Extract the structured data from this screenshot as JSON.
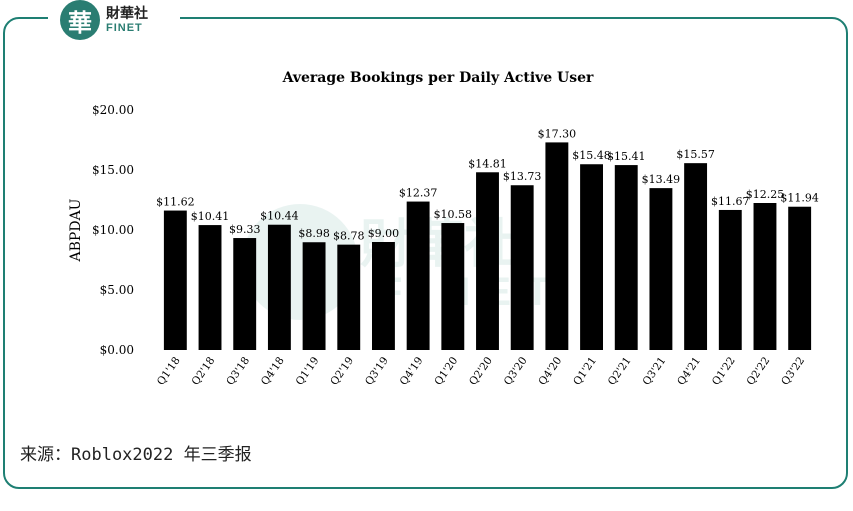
{
  "brand": {
    "badge_char": "華",
    "name_cn": "財華社",
    "name_en": "FINET"
  },
  "watermark": {
    "main": "財華社",
    "sub": "FINET"
  },
  "source_note": "来源：Roblox2022 年三季报",
  "colors": {
    "accent": "#1e7f73",
    "bar": "#000000"
  },
  "chart_data": {
    "type": "bar",
    "title": "Average Bookings per Daily Active User",
    "xlabel": "",
    "ylabel": "ABPDAU",
    "ylim": [
      0,
      20
    ],
    "yticks": [
      "$0.00",
      "$5.00",
      "$10.00",
      "$15.00",
      "$20.00"
    ],
    "ytick_values": [
      0,
      5,
      10,
      15,
      20
    ],
    "grid": false,
    "categories": [
      "Q1'18",
      "Q2'18",
      "Q3'18",
      "Q4'18",
      "Q1'19",
      "Q2'19",
      "Q3'19",
      "Q4'19",
      "Q1'20",
      "Q2'20",
      "Q3'20",
      "Q4'20",
      "Q1'21",
      "Q2'21",
      "Q3'21",
      "Q4'21",
      "Q1'22",
      "Q2'22",
      "Q3'22"
    ],
    "values": [
      11.62,
      10.41,
      9.33,
      10.44,
      8.98,
      8.78,
      9.0,
      12.37,
      10.58,
      14.81,
      13.73,
      17.3,
      15.48,
      15.41,
      13.49,
      15.57,
      11.67,
      12.25,
      11.94
    ],
    "value_labels": [
      "$11.62",
      "$10.41",
      "$9.33",
      "$10.44",
      "$8.98",
      "$8.78",
      "$9.00",
      "$12.37",
      "$10.58",
      "$14.81",
      "$13.73",
      "$17.30",
      "$15.48",
      "$15.41",
      "$13.49",
      "$15.57",
      "$11.67",
      "$12.25",
      "$11.94"
    ]
  }
}
